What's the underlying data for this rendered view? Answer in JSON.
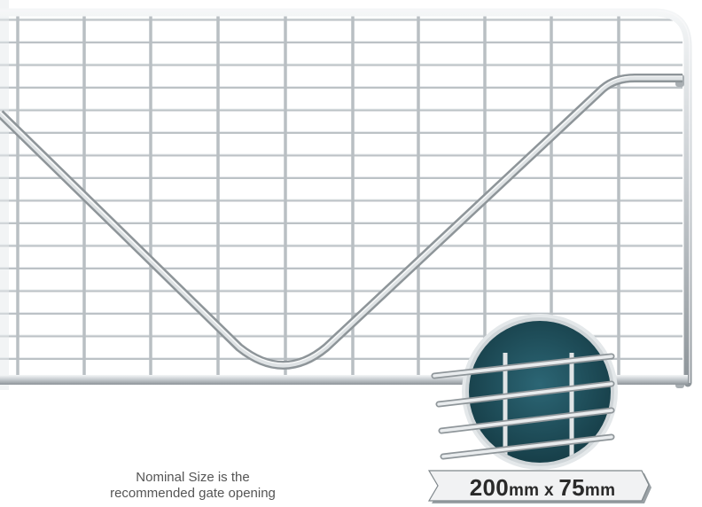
{
  "image": {
    "subject": "galvanised mesh farm gate with diagonal brace",
    "colors": {
      "background": "#ffffff",
      "rail": "#c9ced2",
      "mesh_wire": "#bfc5c9",
      "mesh_shadow": "#8f969b",
      "badge_fill": "#1e4e5a",
      "badge_ring": "#d8dde0",
      "ribbon_fill": "#eef0f1",
      "ribbon_shadow": "#9aa1a5",
      "text": "#555555"
    }
  },
  "note": {
    "line1": "Nominal Size is the",
    "line2": "recommended gate opening"
  },
  "mesh_badge": {
    "size_value": "200",
    "size_unit": "mm",
    "separator": " x ",
    "size_value2": "75",
    "size_unit2": "mm"
  }
}
